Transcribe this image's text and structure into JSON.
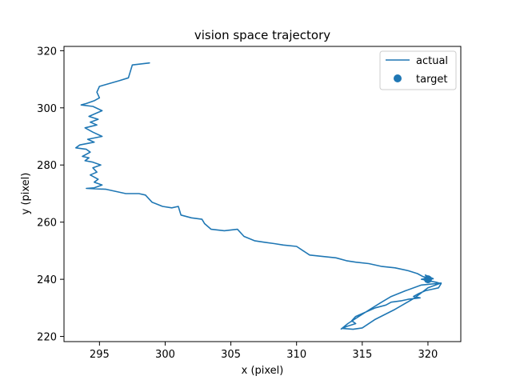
{
  "chart_data": {
    "type": "line",
    "title": "vision space trajectory",
    "xlabel": "x (pixel)",
    "ylabel": "y (pixel)",
    "xlim": [
      292.3,
      322.5
    ],
    "ylim": [
      218.2,
      321.5
    ],
    "xticks": [
      295,
      300,
      305,
      310,
      315,
      320
    ],
    "yticks": [
      220,
      240,
      260,
      280,
      300,
      320
    ],
    "grid": false,
    "legend_position": "top-right",
    "legend": [
      "actual",
      "target"
    ],
    "series": [
      {
        "name": "actual",
        "kind": "line",
        "color": "#1f77b4",
        "points": [
          [
            298.8,
            315.7
          ],
          [
            297.5,
            315.0
          ],
          [
            297.2,
            310.5
          ],
          [
            296.5,
            309.5
          ],
          [
            295.0,
            307.5
          ],
          [
            294.8,
            305.5
          ],
          [
            295.0,
            303.5
          ],
          [
            294.6,
            302.5
          ],
          [
            294.0,
            301.5
          ],
          [
            293.6,
            301.0
          ],
          [
            294.5,
            300.5
          ],
          [
            295.2,
            299.0
          ],
          [
            294.7,
            298.0
          ],
          [
            294.2,
            297.0
          ],
          [
            294.9,
            296.0
          ],
          [
            294.3,
            295.0
          ],
          [
            294.8,
            294.0
          ],
          [
            293.9,
            293.0
          ],
          [
            294.5,
            291.5
          ],
          [
            295.2,
            290.0
          ],
          [
            294.1,
            289.0
          ],
          [
            294.6,
            288.0
          ],
          [
            293.5,
            287.0
          ],
          [
            293.2,
            286.0
          ],
          [
            294.0,
            285.5
          ],
          [
            294.3,
            284.5
          ],
          [
            293.7,
            283.0
          ],
          [
            294.2,
            282.5
          ],
          [
            293.9,
            281.5
          ],
          [
            294.5,
            281.0
          ],
          [
            295.1,
            280.0
          ],
          [
            294.5,
            279.0
          ],
          [
            294.8,
            277.5
          ],
          [
            294.3,
            276.5
          ],
          [
            294.9,
            275.0
          ],
          [
            294.6,
            274.0
          ],
          [
            295.2,
            273.0
          ],
          [
            294.6,
            272.0
          ],
          [
            294.0,
            271.8
          ],
          [
            295.5,
            271.5
          ],
          [
            297.0,
            270.0
          ],
          [
            298.0,
            270.0
          ],
          [
            298.5,
            269.5
          ],
          [
            299.0,
            267.0
          ],
          [
            299.8,
            265.5
          ],
          [
            300.5,
            265.0
          ],
          [
            301.0,
            265.5
          ],
          [
            301.2,
            262.5
          ],
          [
            302.0,
            261.5
          ],
          [
            302.8,
            261.0
          ],
          [
            303.0,
            259.5
          ],
          [
            303.5,
            257.5
          ],
          [
            304.5,
            257.0
          ],
          [
            305.5,
            257.5
          ],
          [
            306.0,
            255.0
          ],
          [
            306.8,
            253.5
          ],
          [
            307.5,
            253.0
          ],
          [
            308.3,
            252.5
          ],
          [
            309.0,
            252.0
          ],
          [
            310.0,
            251.5
          ],
          [
            310.5,
            250.0
          ],
          [
            311.0,
            248.5
          ],
          [
            312.0,
            248.0
          ],
          [
            313.0,
            247.5
          ],
          [
            313.8,
            246.5
          ],
          [
            314.5,
            246.0
          ],
          [
            315.5,
            245.5
          ],
          [
            316.5,
            244.5
          ],
          [
            317.5,
            244.0
          ],
          [
            318.5,
            243.0
          ],
          [
            319.2,
            242.0
          ],
          [
            319.6,
            241.0
          ],
          [
            320.0,
            240.5
          ],
          [
            319.5,
            240.0
          ],
          [
            320.2,
            239.5
          ],
          [
            319.8,
            241.5
          ],
          [
            320.4,
            240.2
          ],
          [
            319.7,
            239.8
          ],
          [
            320.1,
            240.6
          ],
          [
            319.9,
            239.6
          ],
          [
            320.6,
            239.0
          ],
          [
            321.0,
            238.5
          ],
          [
            320.8,
            237.0
          ],
          [
            320.3,
            236.5
          ],
          [
            319.8,
            236.0
          ],
          [
            319.3,
            235.0
          ],
          [
            318.9,
            234.0
          ],
          [
            319.4,
            233.5
          ],
          [
            318.5,
            233.0
          ],
          [
            318.0,
            232.5
          ],
          [
            317.2,
            232.0
          ],
          [
            316.8,
            231.0
          ],
          [
            316.0,
            230.0
          ],
          [
            315.5,
            229.0
          ],
          [
            315.0,
            228.0
          ],
          [
            314.5,
            227.0
          ],
          [
            314.2,
            225.5
          ],
          [
            314.5,
            224.5
          ],
          [
            313.8,
            223.5
          ],
          [
            313.5,
            222.8
          ],
          [
            314.3,
            222.5
          ],
          [
            315.0,
            223.0
          ],
          [
            316.0,
            226.0
          ],
          [
            317.5,
            229.5
          ],
          [
            319.0,
            233.5
          ],
          [
            320.0,
            237.0
          ],
          [
            321.0,
            238.7
          ],
          [
            319.5,
            238.0
          ],
          [
            318.3,
            236.0
          ],
          [
            317.2,
            234.0
          ],
          [
            316.4,
            231.8
          ],
          [
            315.6,
            229.5
          ],
          [
            314.8,
            227.2
          ],
          [
            313.9,
            224.5
          ],
          [
            313.4,
            222.6
          ]
        ]
      },
      {
        "name": "target",
        "kind": "scatter",
        "color": "#1f77b4",
        "points": [
          [
            320.0,
            240.0
          ]
        ]
      }
    ]
  }
}
